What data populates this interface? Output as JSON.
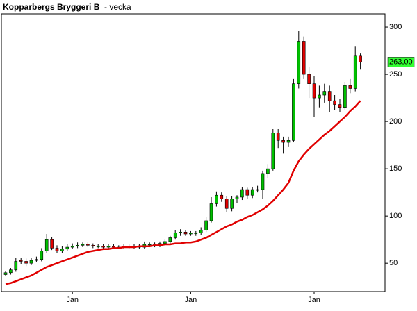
{
  "chart_data": {
    "type": "candlestick",
    "title": "Kopparbergs Bryggeri B",
    "subtitle": "- vecka",
    "categories": [
      null,
      null,
      null,
      null,
      null,
      null,
      null,
      null,
      null,
      null,
      null,
      null,
      null,
      "Jan",
      null,
      null,
      null,
      null,
      null,
      null,
      null,
      null,
      null,
      null,
      null,
      null,
      null,
      null,
      null,
      null,
      null,
      null,
      null,
      null,
      null,
      null,
      "Jan",
      null,
      null,
      null,
      null,
      null,
      null,
      null,
      null,
      null,
      null,
      null,
      null,
      null,
      null,
      null,
      null,
      null,
      null,
      null,
      null,
      null,
      null,
      null,
      "Jan",
      null,
      null,
      null,
      null,
      null,
      null,
      null,
      null,
      null
    ],
    "open": [
      38,
      40,
      43,
      53,
      52,
      50,
      53,
      54,
      63,
      75,
      66,
      63,
      65,
      67,
      68,
      69,
      70,
      69,
      68,
      68,
      67,
      68,
      67,
      67,
      68,
      67,
      68,
      67,
      70,
      70,
      69,
      71,
      73,
      77,
      82,
      83,
      81,
      82,
      82,
      85,
      95,
      113,
      122,
      118,
      108,
      118,
      120,
      128,
      122,
      128,
      128,
      145,
      150,
      188,
      180,
      178,
      180,
      240,
      285,
      250,
      240,
      225,
      228,
      232,
      222,
      218,
      215,
      238,
      235,
      270
    ],
    "high": [
      42,
      45,
      56,
      56,
      55,
      56,
      57,
      66,
      81,
      78,
      69,
      68,
      70,
      71,
      72,
      72,
      72,
      71,
      70,
      70,
      70,
      70,
      69,
      70,
      70,
      70,
      70,
      73,
      72,
      72,
      73,
      75,
      79,
      85,
      86,
      85,
      84,
      84,
      88,
      99,
      120,
      126,
      125,
      121,
      121,
      122,
      131,
      130,
      131,
      132,
      148,
      155,
      192,
      192,
      184,
      184,
      245,
      296,
      290,
      258,
      248,
      238,
      240,
      238,
      228,
      224,
      242,
      245,
      280,
      272
    ],
    "low": [
      37,
      38,
      41,
      49,
      47,
      48,
      51,
      52,
      61,
      64,
      61,
      61,
      63,
      65,
      66,
      67,
      67,
      66,
      66,
      65,
      65,
      65,
      65,
      65,
      65,
      65,
      65,
      65,
      67,
      67,
      67,
      69,
      71,
      75,
      79,
      79,
      79,
      79,
      80,
      83,
      93,
      110,
      115,
      104,
      105,
      114,
      117,
      118,
      119,
      125,
      118,
      140,
      148,
      172,
      166,
      173,
      178,
      235,
      245,
      225,
      205,
      215,
      220,
      210,
      212,
      210,
      212,
      230,
      232,
      255
    ],
    "close": [
      40,
      43,
      52,
      52,
      50,
      53,
      54,
      63,
      75,
      66,
      63,
      65,
      67,
      68,
      69,
      70,
      69,
      68,
      68,
      67,
      68,
      67,
      67,
      68,
      67,
      68,
      67,
      70,
      70,
      69,
      71,
      73,
      77,
      82,
      83,
      81,
      82,
      82,
      85,
      95,
      113,
      122,
      118,
      108,
      118,
      120,
      128,
      122,
      128,
      128,
      145,
      150,
      188,
      180,
      178,
      180,
      240,
      285,
      250,
      240,
      225,
      228,
      232,
      222,
      218,
      215,
      238,
      235,
      270,
      263
    ],
    "moving_average": {
      "color": "#e00000",
      "values": [
        28,
        29,
        31,
        33,
        35,
        37,
        40,
        43,
        46,
        48,
        50,
        52,
        54,
        56,
        58,
        60,
        62,
        63,
        64,
        65,
        65,
        66,
        66,
        67,
        67,
        67,
        68,
        68,
        68,
        69,
        69,
        70,
        70,
        71,
        71,
        72,
        72,
        73,
        75,
        77,
        80,
        83,
        86,
        89,
        91,
        94,
        96,
        99,
        101,
        104,
        107,
        111,
        116,
        122,
        128,
        135,
        148,
        158,
        165,
        171,
        176,
        181,
        186,
        190,
        195,
        200,
        205,
        211,
        216,
        222
      ]
    },
    "up_color": "#00c000",
    "down_color": "#e00000",
    "ylim": [
      20,
      314
    ],
    "yticks": [
      50,
      100,
      150,
      200,
      250,
      300
    ],
    "last_price": {
      "value": 263,
      "label": "263,00"
    }
  }
}
